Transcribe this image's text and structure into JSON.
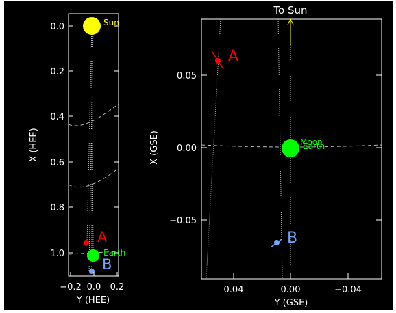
{
  "colors": {
    "background": "#000000",
    "axis": "#ffffff",
    "sun": "#ffff00",
    "earth": "#00ff00",
    "stereo_a": "#ff0000",
    "stereo_b": "#6fa8ff"
  },
  "left_panel": {
    "xlabel": "Y (HEE)",
    "ylabel": "X (HEE)",
    "y_ticks": [
      "0.0",
      "0.2",
      "0.4",
      "0.6",
      "0.8",
      "1.0"
    ],
    "x_ticks": [
      "−0.2",
      "0.0",
      "0.2"
    ],
    "labels": {
      "sun": "Sun",
      "earth": "Earth",
      "a": "A",
      "b": "B"
    }
  },
  "right_panel": {
    "title": "To Sun",
    "xlabel": "Y (GSE)",
    "ylabel": "X (GSE)",
    "y_ticks": [
      "0.05",
      "0.00",
      "−0.05"
    ],
    "x_ticks": [
      "0.04",
      "0.00",
      "−0.04"
    ],
    "labels": {
      "moon": "Moon",
      "earth": "Earth",
      "a": "A",
      "b": "B"
    }
  }
}
